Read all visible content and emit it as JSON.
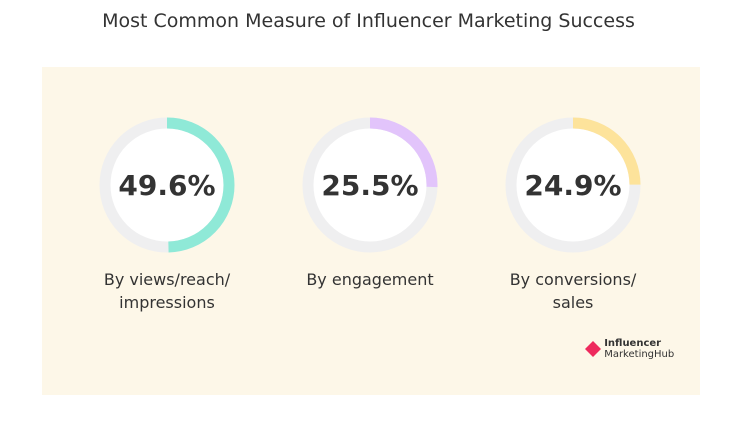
{
  "chart_data": {
    "type": "donut",
    "title": "Most Common Measure of Influencer Marketing Success",
    "items": [
      {
        "label_lines": [
          "By views/reach/",
          "impressions"
        ],
        "value": 49.6,
        "display": "49.6%",
        "color": "#8fe9d7"
      },
      {
        "label_lines": [
          "By engagement"
        ],
        "value": 25.5,
        "display": "25.5%",
        "color": "#e2c4fb"
      },
      {
        "label_lines": [
          "By conversions/",
          "sales"
        ],
        "value": 24.9,
        "display": "24.9%",
        "color": "#fde39b"
      }
    ],
    "track_color": "#efeff0"
  },
  "logo": {
    "line1": "Influencer",
    "line2": "MarketingHub",
    "color": "#ee2a5d"
  }
}
